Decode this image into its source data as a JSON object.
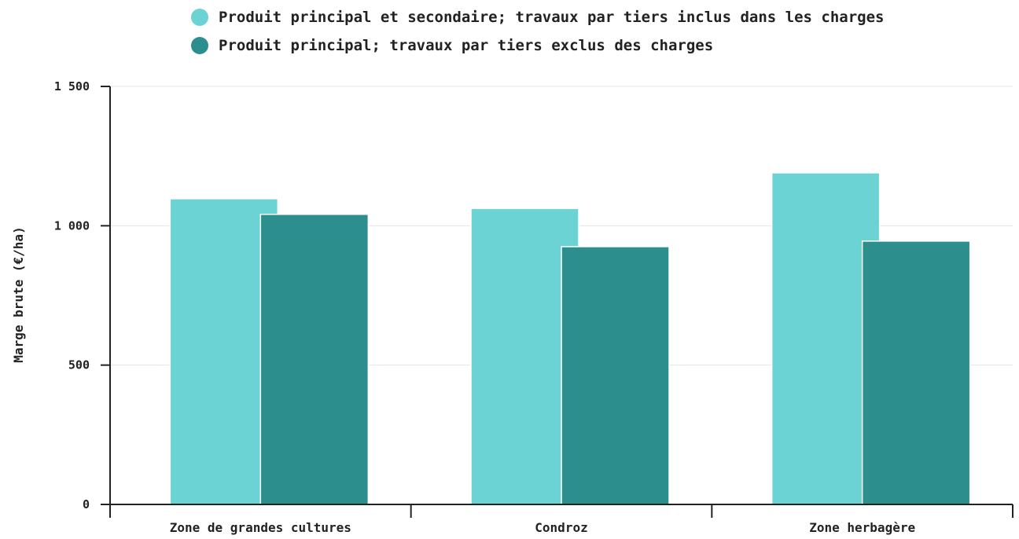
{
  "chart_data": {
    "type": "bar",
    "ylabel": "Marge brute (€/ha)",
    "xlabel": "",
    "categories": [
      "Zone de grandes cultures",
      "Condroz",
      "Zone herbagère"
    ],
    "series": [
      {
        "name": "Produit principal et secondaire; travaux par tiers inclus dans les charges",
        "color": "#6bd3d3",
        "values": [
          1097,
          1062,
          1190
        ]
      },
      {
        "name": "Produit principal; travaux par tiers exclus des charges",
        "color": "#2d8e8e",
        "values": [
          1041,
          925,
          945
        ]
      }
    ],
    "ylim": [
      0,
      1500
    ],
    "yticks": [
      0,
      500,
      1000,
      1500
    ],
    "ytick_labels": [
      "0",
      "500",
      "1 000",
      "1 500"
    ],
    "grid": true,
    "legend_position": "top"
  }
}
